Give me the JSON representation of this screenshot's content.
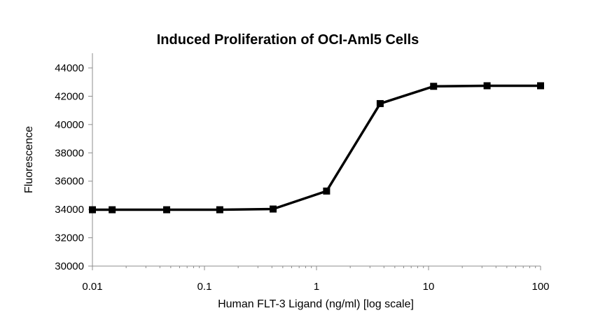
{
  "chart_data": {
    "type": "line",
    "title": "Induced Proliferation of OCI-Aml5 Cells",
    "xlabel": "Human FLT-3 Ligand (ng/ml) [log scale]",
    "ylabel": "Fluorescence",
    "x_scale": "log",
    "xlim": [
      0.01,
      100
    ],
    "ylim": [
      30000,
      44000
    ],
    "x_ticks": [
      "0.01",
      "0.1",
      "1",
      "10",
      "100"
    ],
    "y_ticks": [
      "30000",
      "32000",
      "34000",
      "36000",
      "38000",
      "40000",
      "42000",
      "44000"
    ],
    "grid": false,
    "legend": "none",
    "series": [
      {
        "marker": "square",
        "color": "#000000",
        "x": [
          0.01,
          0.015,
          0.046,
          0.137,
          0.41,
          1.23,
          3.7,
          11.1,
          33.3,
          100
        ],
        "y": [
          33980,
          33980,
          33980,
          33980,
          34030,
          35300,
          41480,
          42700,
          42740,
          42740
        ]
      }
    ]
  }
}
